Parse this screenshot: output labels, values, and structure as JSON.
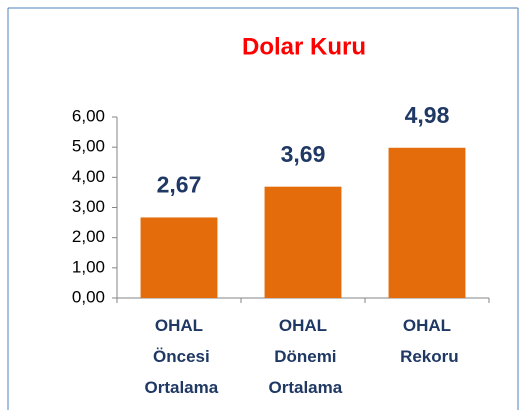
{
  "chart_data": {
    "type": "bar",
    "title": "Dolar Kuru",
    "categories": [
      "OHAL Öncesi Ortalama",
      "OHAL Dönemi Ortalama",
      "OHAL Rekoru"
    ],
    "values": [
      2.67,
      3.69,
      4.98
    ],
    "value_labels": [
      "2,67",
      "3,69",
      "4,98"
    ],
    "color": "#e46c0a",
    "ylim": [
      0,
      6
    ],
    "yticks": [
      {
        "value": 0,
        "label": "0,00"
      },
      {
        "value": 1,
        "label": "1,00"
      },
      {
        "value": 2,
        "label": "2,00"
      },
      {
        "value": 3,
        "label": "3,00"
      },
      {
        "value": 4,
        "label": "4,00"
      },
      {
        "value": 5,
        "label": "5,00"
      },
      {
        "value": 6,
        "label": "6,00"
      }
    ],
    "grid": false
  }
}
